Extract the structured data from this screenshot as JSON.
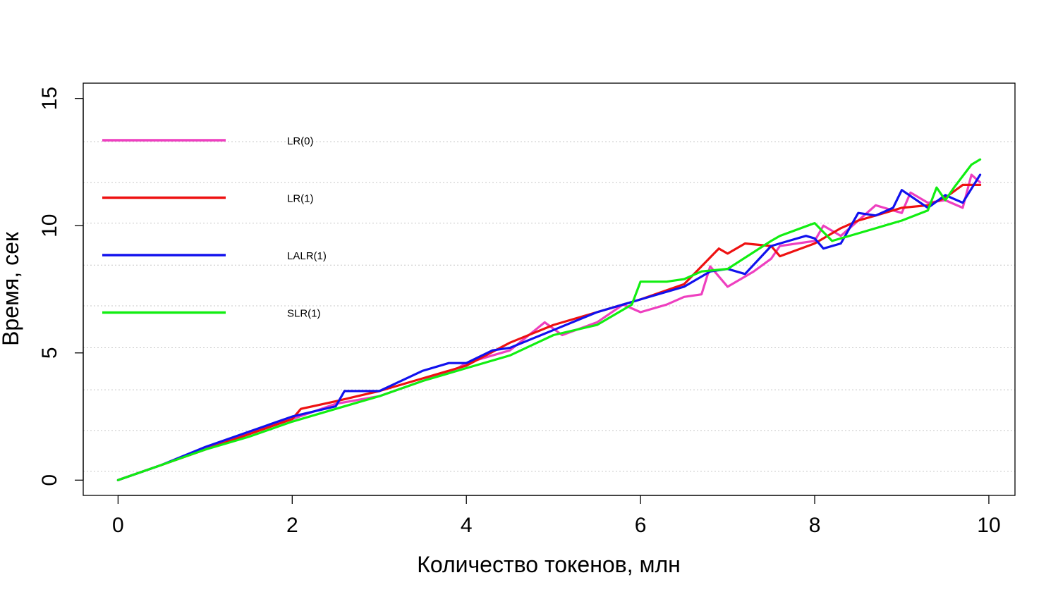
{
  "chart_data": {
    "type": "line",
    "xlabel": "Количество токенов, млн",
    "ylabel": "Время, сек",
    "xlim": [
      -0.4,
      10.3
    ],
    "ylim": [
      -0.6,
      15.6
    ],
    "xticks": [
      0,
      2,
      4,
      6,
      8,
      10
    ],
    "yticks": [
      0,
      5,
      10,
      15
    ],
    "xtick_labels": [
      "0",
      "2",
      "4",
      "6",
      "8",
      "10"
    ],
    "ytick_labels": [
      "0",
      "5",
      "10",
      "15"
    ],
    "grid": "horizontal dotted",
    "legend_position": "top-left",
    "colors": {
      "LR(0)": "#ee3fbf",
      "LR(1)": "#ee1111",
      "LALR(1)": "#1111ee",
      "SLR(1)": "#11ee11"
    },
    "series": [
      {
        "name": "LR(0)",
        "color": "#ee3fbf",
        "x": [
          0,
          0.5,
          1.0,
          1.5,
          2.0,
          2.5,
          3.0,
          3.5,
          3.9,
          4.0,
          4.5,
          4.9,
          5.1,
          5.5,
          5.8,
          6.0,
          6.3,
          6.5,
          6.7,
          6.8,
          7.0,
          7.3,
          7.5,
          7.6,
          8.0,
          8.1,
          8.3,
          8.5,
          8.7,
          9.0,
          9.1,
          9.3,
          9.5,
          9.7,
          9.8,
          9.9
        ],
        "y": [
          0,
          0.6,
          1.2,
          1.9,
          2.4,
          3.0,
          3.3,
          3.9,
          4.4,
          4.6,
          5.1,
          6.2,
          5.7,
          6.2,
          6.9,
          6.6,
          6.9,
          7.2,
          7.3,
          8.4,
          7.6,
          8.2,
          8.7,
          9.2,
          9.4,
          10.0,
          9.6,
          10.2,
          10.8,
          10.5,
          11.3,
          10.9,
          11.0,
          10.7,
          12.0,
          11.7
        ]
      },
      {
        "name": "LR(1)",
        "color": "#ee1111",
        "x": [
          0,
          0.5,
          1.0,
          1.5,
          2.0,
          2.1,
          2.5,
          3.0,
          3.5,
          4.0,
          4.5,
          5.0,
          5.5,
          6.0,
          6.5,
          6.9,
          7.0,
          7.2,
          7.5,
          7.6,
          8.0,
          8.3,
          8.5,
          8.7,
          9.0,
          9.3,
          9.5,
          9.7,
          9.9
        ],
        "y": [
          0,
          0.6,
          1.2,
          1.8,
          2.4,
          2.8,
          3.1,
          3.5,
          4.0,
          4.5,
          5.4,
          6.1,
          6.6,
          7.1,
          7.7,
          9.1,
          8.9,
          9.3,
          9.2,
          8.8,
          9.3,
          9.9,
          10.2,
          10.4,
          10.7,
          10.8,
          11.1,
          11.6,
          11.6
        ]
      },
      {
        "name": "LALR(1)",
        "color": "#1111ee",
        "x": [
          0,
          0.5,
          1.0,
          1.5,
          2.0,
          2.5,
          2.6,
          3.0,
          3.5,
          3.8,
          4.0,
          4.3,
          4.5,
          5.0,
          5.5,
          6.0,
          6.5,
          6.8,
          7.0,
          7.2,
          7.5,
          7.7,
          7.9,
          8.0,
          8.1,
          8.3,
          8.5,
          8.7,
          8.9,
          9.0,
          9.3,
          9.5,
          9.7,
          9.9
        ],
        "y": [
          0,
          0.6,
          1.3,
          1.9,
          2.5,
          2.9,
          3.5,
          3.5,
          4.3,
          4.6,
          4.6,
          5.1,
          5.2,
          5.9,
          6.6,
          7.1,
          7.6,
          8.2,
          8.3,
          8.1,
          9.2,
          9.4,
          9.6,
          9.5,
          9.1,
          9.3,
          10.5,
          10.4,
          10.7,
          11.4,
          10.7,
          11.2,
          10.9,
          12.0
        ]
      },
      {
        "name": "SLR(1)",
        "color": "#11ee11",
        "x": [
          0,
          0.5,
          1.0,
          1.5,
          2.0,
          2.5,
          3.0,
          3.5,
          4.0,
          4.5,
          5.0,
          5.5,
          5.9,
          6.0,
          6.3,
          6.5,
          6.7,
          7.0,
          7.5,
          7.6,
          8.0,
          8.2,
          8.5,
          9.0,
          9.3,
          9.4,
          9.5,
          9.6,
          9.8,
          9.9
        ],
        "y": [
          0,
          0.6,
          1.2,
          1.7,
          2.3,
          2.8,
          3.3,
          3.9,
          4.4,
          4.9,
          5.7,
          6.1,
          6.9,
          7.8,
          7.8,
          7.9,
          8.2,
          8.3,
          9.4,
          9.6,
          10.1,
          9.4,
          9.7,
          10.2,
          10.6,
          11.5,
          11.0,
          11.5,
          12.4,
          12.6
        ]
      }
    ]
  }
}
